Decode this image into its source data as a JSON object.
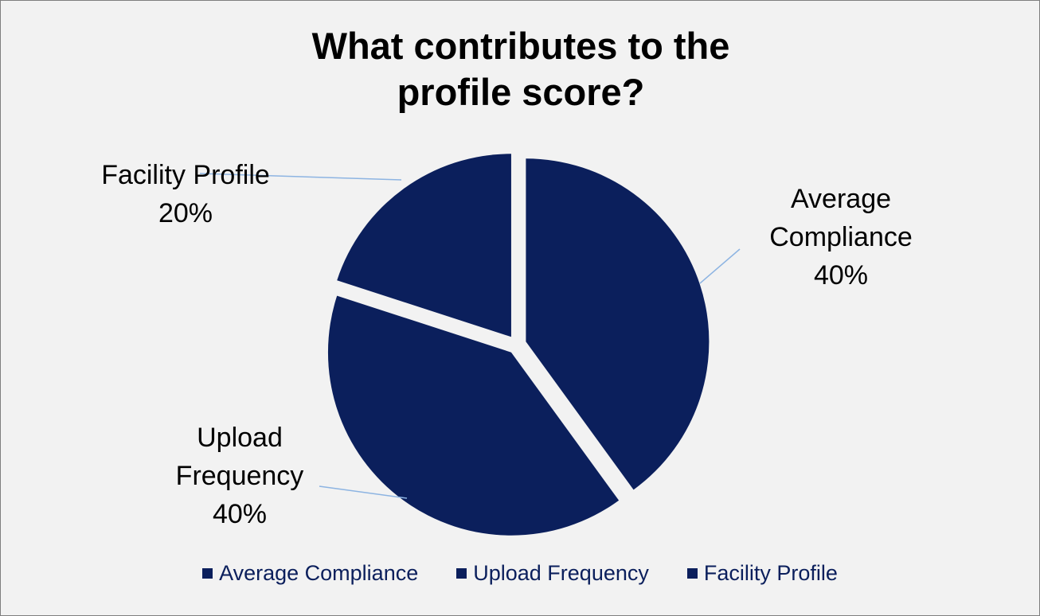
{
  "chart_data": {
    "type": "pie",
    "title": "What contributes to the profile score?",
    "categories": [
      "Average Compliance",
      "Upload Frequency",
      "Facility Profile"
    ],
    "values": [
      40,
      40,
      20
    ],
    "value_labels": [
      "40%",
      "40%",
      "20%"
    ],
    "color": "#0b1f5c",
    "legend": "bottom"
  }
}
